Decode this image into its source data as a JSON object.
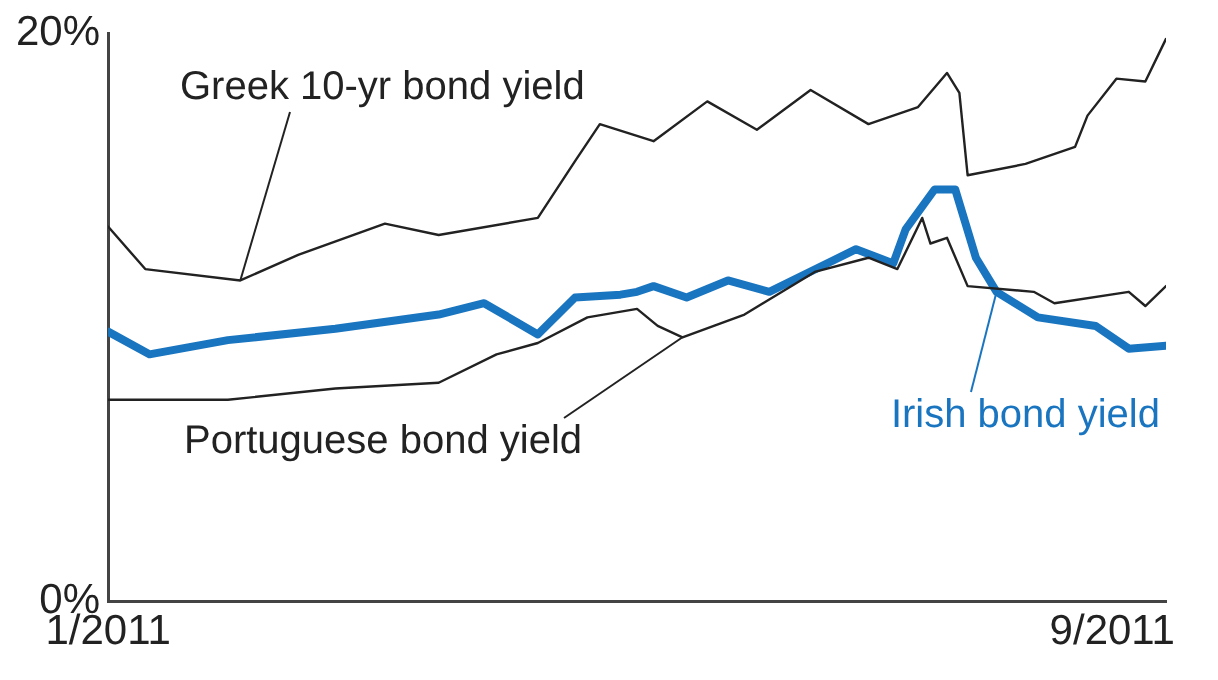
{
  "chart_data": {
    "type": "line",
    "xlim": [
      "2011-01-01",
      "2011-09-14"
    ],
    "xticks": [
      {
        "value": "2011-01-01",
        "label": "1/2011"
      },
      {
        "value": "2011-09-01",
        "label": "9/2011"
      }
    ],
    "ylim": [
      0,
      20
    ],
    "yticks": [
      {
        "value": 0,
        "label": "0%"
      },
      {
        "value": 20,
        "label": "20%"
      }
    ],
    "grid": false,
    "legend": false,
    "marker": "none",
    "series": [
      {
        "name": "Greek 10-yr bond yield",
        "color": "#222222",
        "x": [
          "2011-01-01",
          "2011-01-10",
          "2011-02-02",
          "2011-02-16",
          "2011-03-09",
          "2011-03-22",
          "2011-04-15",
          "2011-04-24",
          "2011-04-30",
          "2011-05-13",
          "2011-05-26",
          "2011-06-07",
          "2011-06-20",
          "2011-07-04",
          "2011-07-16",
          "2011-07-23",
          "2011-07-26",
          "2011-07-28",
          "2011-08-11",
          "2011-08-23",
          "2011-08-26",
          "2011-09-02",
          "2011-09-09",
          "2011-09-14"
        ],
        "values": [
          13.2,
          11.7,
          11.3,
          12.2,
          13.3,
          12.9,
          13.5,
          15.5,
          16.8,
          16.2,
          17.6,
          16.6,
          18.0,
          16.8,
          17.4,
          18.6,
          17.9,
          15.0,
          15.4,
          16.0,
          17.1,
          18.4,
          18.3,
          19.8
        ]
      },
      {
        "name": "Portuguese bond yield",
        "color": "#222222",
        "x": [
          "2011-01-01",
          "2011-01-30",
          "2011-02-25",
          "2011-03-22",
          "2011-04-05",
          "2011-04-15",
          "2011-04-27",
          "2011-05-09",
          "2011-05-14",
          "2011-05-20",
          "2011-06-04",
          "2011-06-21",
          "2011-07-04",
          "2011-07-11",
          "2011-07-17",
          "2011-07-19",
          "2011-07-23",
          "2011-07-28",
          "2011-08-13",
          "2011-08-18",
          "2011-09-05",
          "2011-09-09",
          "2011-09-14"
        ],
        "values": [
          7.1,
          7.1,
          7.5,
          7.7,
          8.7,
          9.1,
          10.0,
          10.3,
          9.7,
          9.3,
          10.1,
          11.6,
          12.1,
          11.7,
          13.5,
          12.6,
          12.8,
          11.1,
          10.9,
          10.5,
          10.9,
          10.4,
          11.1
        ]
      },
      {
        "name": "Irish bond yield",
        "color": "#1a75c0",
        "x": [
          "2011-01-01",
          "2011-01-11",
          "2011-01-30",
          "2011-02-25",
          "2011-03-22",
          "2011-04-02",
          "2011-04-15",
          "2011-04-24",
          "2011-05-05",
          "2011-05-09",
          "2011-05-13",
          "2011-05-21",
          "2011-05-31",
          "2011-06-10",
          "2011-07-01",
          "2011-07-10",
          "2011-07-13",
          "2011-07-20",
          "2011-07-25",
          "2011-07-30",
          "2011-08-04",
          "2011-08-14",
          "2011-08-28",
          "2011-09-05",
          "2011-09-14"
        ],
        "values": [
          9.5,
          8.7,
          9.2,
          9.6,
          10.1,
          10.5,
          9.4,
          10.7,
          10.8,
          10.9,
          11.1,
          10.7,
          11.3,
          10.9,
          12.4,
          11.9,
          13.1,
          14.5,
          14.5,
          12.1,
          10.9,
          10.0,
          9.7,
          8.9,
          9.0
        ]
      }
    ]
  }
}
